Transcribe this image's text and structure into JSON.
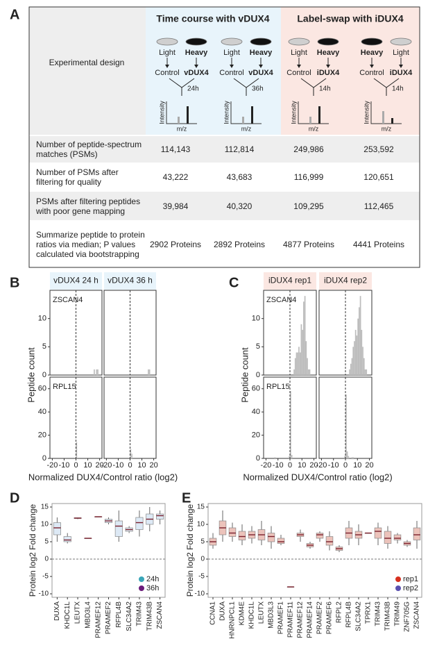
{
  "panel_a": {
    "label": "A",
    "row_header": "Experimental design",
    "groups": [
      {
        "title": "Time course with vDUX4",
        "experiments": [
          {
            "dishes": [
              {
                "label": "Light",
                "heavy": false
              },
              {
                "label": "Heavy",
                "heavy": true
              }
            ],
            "conditions": [
              "Control",
              "vDUX4"
            ],
            "time": "24h",
            "y_axis": "Intensity",
            "x_axis": "m/z"
          },
          {
            "dishes": [
              {
                "label": "Light",
                "heavy": false
              },
              {
                "label": "Heavy",
                "heavy": true
              }
            ],
            "conditions": [
              "Control",
              "vDUX4"
            ],
            "time": "36h",
            "y_axis": "Intensity",
            "x_axis": "m/z"
          }
        ]
      },
      {
        "title": "Label-swap with iDUX4",
        "experiments": [
          {
            "dishes": [
              {
                "label": "Light",
                "heavy": false
              },
              {
                "label": "Heavy",
                "heavy": true
              }
            ],
            "conditions": [
              "Control",
              "iDUX4"
            ],
            "time": "14h",
            "y_axis": "Intensity",
            "x_axis": "m/z"
          },
          {
            "dishes": [
              {
                "label": "Heavy",
                "heavy": true
              },
              {
                "label": "Light",
                "heavy": false
              }
            ],
            "conditions": [
              "Control",
              "iDUX4"
            ],
            "time": "14h",
            "y_axis": "Intensity",
            "x_axis": "m/z"
          }
        ]
      }
    ],
    "rows": [
      {
        "label": "Number of peptide-spectrum matches (PSMs)",
        "values": [
          "114,143",
          "112,814",
          "249,986",
          "253,592"
        ]
      },
      {
        "label": "Number of PSMs after filtering for quality",
        "values": [
          "43,222",
          "43,683",
          "116,999",
          "120,651"
        ]
      },
      {
        "label": "PSMs after filtering peptides with poor gene mapping",
        "values": [
          "39,984",
          "40,320",
          "109,295",
          "112,465"
        ]
      },
      {
        "label": "Summarize peptide to protein ratios via median; P values calculated via bootstrapping",
        "values": [
          "2902 Proteins",
          "2892 Proteins",
          "4877 Proteins",
          "4441 Proteins"
        ]
      }
    ]
  },
  "chart_data": [
    {
      "type": "histogram",
      "label": "B",
      "x_label": "Normalized DUX4/Control ratio (log2)",
      "y_label": "Peptide count",
      "xlim": [
        -22,
        22
      ],
      "xticks": [
        -20,
        -10,
        0,
        10,
        20
      ],
      "strip_color": "#e8f4fb",
      "bar_color": "#bdbdbd",
      "facets": [
        "vDUX4 24 h",
        "vDUX4 36 h"
      ],
      "rows": [
        {
          "gene": "ZSCAN4",
          "ylim": [
            0,
            15
          ],
          "yticks": [
            0,
            5,
            10
          ],
          "histograms": [
            {
              "bins": [
                15,
                16,
                17,
                18,
                19
              ],
              "counts": [
                1,
                0,
                1,
                1
              ]
            },
            {
              "bins": [
                15,
                16,
                17
              ],
              "counts": [
                1,
                1
              ]
            }
          ]
        },
        {
          "gene": "RPL15",
          "ylim": [
            0,
            70
          ],
          "yticks": [
            0,
            20,
            40,
            60
          ],
          "histograms": [
            {
              "bins": [
                0,
                1
              ],
              "counts": [
                14
              ]
            },
            {
              "bins": [
                0,
                1,
                2
              ],
              "counts": [
                8,
                4
              ]
            }
          ]
        }
      ]
    },
    {
      "type": "histogram",
      "label": "C",
      "x_label": "Normalized DUX4/Control ratio (log2)",
      "y_label": "Peptide count",
      "xlim": [
        -22,
        22
      ],
      "xticks": [
        -20,
        -10,
        0,
        10,
        20
      ],
      "strip_color": "#fbe7e2",
      "bar_color": "#bdbdbd",
      "facets": [
        "iDUX4 rep1",
        "iDUX4 rep2"
      ],
      "rows": [
        {
          "gene": "ZSCAN4",
          "ylim": [
            0,
            15
          ],
          "yticks": [
            0,
            5,
            10
          ],
          "histograms": [
            {
              "bins": [
                3,
                4,
                5,
                6,
                7,
                8,
                9,
                10,
                11,
                12,
                13,
                14,
                15,
                16,
                17
              ],
              "counts": [
                1,
                3,
                4,
                4,
                5,
                4,
                9,
                8,
                13,
                14,
                6,
                3,
                1,
                1
              ]
            },
            {
              "bins": [
                3,
                4,
                5,
                6,
                7,
                8,
                9,
                10,
                11,
                12,
                13,
                14,
                15,
                16,
                17,
                18
              ],
              "counts": [
                1,
                2,
                3,
                5,
                6,
                8,
                7,
                10,
                12,
                14,
                8,
                5,
                3,
                1,
                1
              ]
            }
          ]
        },
        {
          "gene": "RPL15",
          "ylim": [
            0,
            70
          ],
          "yticks": [
            0,
            20,
            40,
            60
          ],
          "histograms": [
            {
              "bins": [
                -13,
                -12,
                -11,
                -10,
                -9,
                -8,
                -7,
                -6,
                -5,
                -4,
                -3,
                -2,
                -1,
                0,
                1,
                2
              ],
              "counts": [
                1,
                0,
                0,
                0,
                0,
                0,
                0,
                0,
                0,
                0,
                0,
                0,
                2,
                58,
                3
              ]
            },
            {
              "bins": [
                -1,
                0,
                1,
                2,
                3,
                4,
                5,
                6,
                7
              ],
              "counts": [
                2,
                55,
                6,
                2,
                0,
                0,
                1,
                1
              ]
            }
          ]
        }
      ]
    },
    {
      "type": "box",
      "label": "D",
      "y_label": "Protein log2 Fold change",
      "categories": [
        "DUXA",
        "KHDC1L",
        "LEUTX",
        "MBD3L4",
        "PRAMEF12",
        "PRAMEF2",
        "RFPL4B",
        "SLC34A2",
        "TRIM43",
        "TRIM43B",
        "ZSCAN4"
      ],
      "boxes": [
        [
          5,
          7,
          9,
          10.5,
          12
        ],
        [
          4.5,
          5,
          5.5,
          6.5,
          7.5
        ],
        [
          11.5,
          11.7,
          11.8,
          11.9,
          12
        ],
        [
          6,
          6,
          6,
          6,
          6
        ],
        [
          12.2,
          12.2,
          12.2,
          12.2,
          12.2
        ],
        [
          10,
          10.5,
          11,
          11.5,
          12
        ],
        [
          5,
          6.5,
          9.5,
          11,
          14
        ],
        [
          7.5,
          8,
          8.5,
          9,
          9.5
        ],
        [
          6.5,
          8.5,
          10.5,
          12,
          14
        ],
        [
          8,
          10,
          11.5,
          13,
          15
        ],
        [
          10,
          11.5,
          12.5,
          13,
          14
        ]
      ],
      "box_color": "#dde9f5",
      "ylim": [
        -11,
        16
      ],
      "yticks": [
        -10,
        -5,
        0,
        5,
        10,
        15
      ],
      "legend": {
        "position": "bottom-right",
        "entries": [
          {
            "name": "24h",
            "color": "#3aa6b8"
          },
          {
            "name": "36h",
            "color": "#6a1b7a"
          }
        ]
      }
    },
    {
      "type": "box",
      "label": "E",
      "y_label": "Protein log2 Fold change",
      "categories": [
        "CCNA1",
        "DUXA",
        "HNRNPCL1",
        "KDM4E",
        "KHDC1L",
        "LEUTX",
        "MBD3L3",
        "PRAMEF1",
        "PRAMEF11",
        "PRAMEF12",
        "PRAMEF14",
        "PRAMEF2",
        "PRAMEF6",
        "RFPL2",
        "RFPL4B",
        "SLC34A2",
        "TPRX1",
        "TRIM43",
        "TRIM43B",
        "TRIM49",
        "ZNF705G",
        "ZSCAN4"
      ],
      "boxes": [
        [
          3,
          4,
          5,
          6,
          7.5
        ],
        [
          5,
          7,
          9,
          11,
          14
        ],
        [
          5,
          6.5,
          7.5,
          9,
          10.5
        ],
        [
          4,
          5.5,
          6.5,
          8,
          10
        ],
        [
          4.5,
          6,
          7,
          8,
          9.5
        ],
        [
          4,
          5.5,
          7,
          8.5,
          11
        ],
        [
          3,
          5,
          6.5,
          7.5,
          9.5
        ],
        [
          4,
          4.5,
          5,
          6,
          7
        ],
        [
          -8,
          -8,
          -8,
          -8,
          -8
        ],
        [
          5,
          6.5,
          7,
          7.5,
          8.5
        ],
        [
          3,
          3.5,
          4,
          4.5,
          5
        ],
        [
          5,
          6,
          7,
          7.5,
          8
        ],
        [
          2.5,
          4,
          5,
          6.5,
          8
        ],
        [
          2,
          2.5,
          3,
          3.5,
          4
        ],
        [
          4,
          6,
          7.5,
          9,
          11
        ],
        [
          4,
          6,
          7,
          8,
          10
        ],
        [
          7.5,
          7.5,
          7.5,
          7.5,
          7.5
        ],
        [
          4,
          6,
          8,
          9,
          10.5
        ],
        [
          3,
          4.5,
          6,
          8,
          9.5
        ],
        [
          4.5,
          5.5,
          6,
          7,
          7.5
        ],
        [
          3.5,
          4,
          4.5,
          5,
          5.5
        ],
        [
          3,
          5.5,
          7,
          9,
          11
        ]
      ],
      "box_color": "#ecc3bb",
      "ylim": [
        -11,
        16
      ],
      "yticks": [
        -10,
        -5,
        0,
        5,
        10,
        15
      ],
      "legend": {
        "position": "bottom-right",
        "entries": [
          {
            "name": "rep1",
            "color": "#d7301f"
          },
          {
            "name": "rep2",
            "color": "#5a4fb0"
          }
        ]
      }
    }
  ]
}
